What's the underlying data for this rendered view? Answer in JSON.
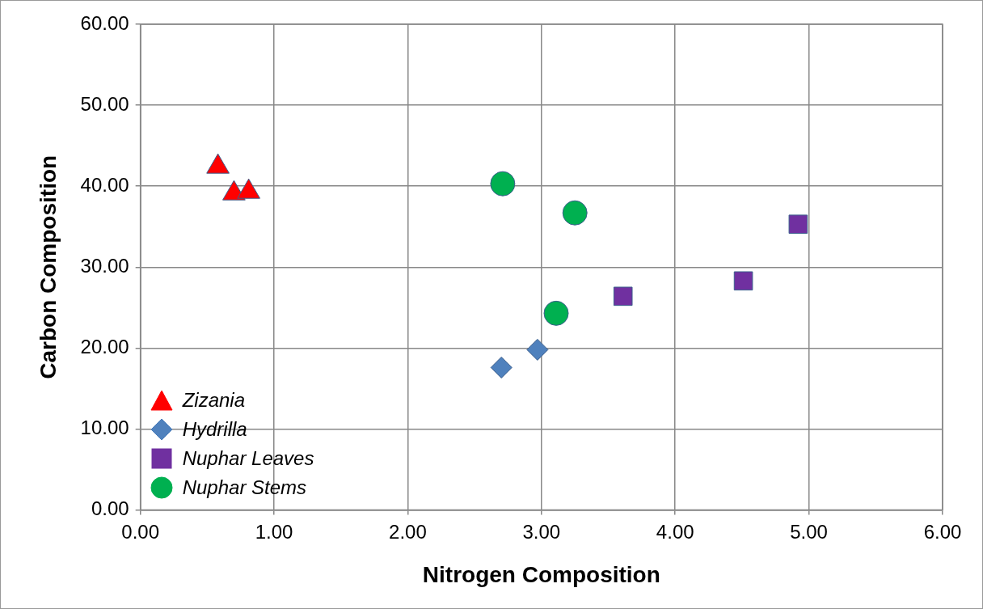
{
  "chart_data": {
    "type": "scatter",
    "xlabel": "Nitrogen Composition",
    "ylabel": "Carbon Composition",
    "xlim": [
      0,
      6
    ],
    "ylim": [
      0,
      60
    ],
    "xticks": [
      {
        "value": 0,
        "label": "0.00"
      },
      {
        "value": 1,
        "label": "1.00"
      },
      {
        "value": 2,
        "label": "2.00"
      },
      {
        "value": 3,
        "label": "3.00"
      },
      {
        "value": 4,
        "label": "4.00"
      },
      {
        "value": 5,
        "label": "5.00"
      },
      {
        "value": 6,
        "label": "6.00"
      }
    ],
    "yticks": [
      {
        "value": 0,
        "label": "0.00"
      },
      {
        "value": 10,
        "label": "10.00"
      },
      {
        "value": 20,
        "label": "20.00"
      },
      {
        "value": 30,
        "label": "30.00"
      },
      {
        "value": 40,
        "label": "40.00"
      },
      {
        "value": 50,
        "label": "50.00"
      },
      {
        "value": 60,
        "label": "60.00"
      }
    ],
    "grid": true,
    "legend": "bottom left",
    "series": [
      {
        "name": "Zizania",
        "color": "#ff0000",
        "marker": "triangle",
        "x": [
          0.58,
          0.7,
          0.81
        ],
        "values": [
          42.4,
          39.1,
          39.3
        ]
      },
      {
        "name": "Hydrilla",
        "color": "#4f81bd",
        "marker": "diamond",
        "x": [
          2.7,
          2.97
        ],
        "values": [
          17.6,
          19.8
        ]
      },
      {
        "name": "Nuphar Leaves",
        "color": "#7030a0",
        "marker": "square",
        "x": [
          3.61,
          4.51,
          4.92
        ],
        "values": [
          26.4,
          28.3,
          35.3
        ]
      },
      {
        "name": "Nuphar Stems",
        "color": "#00b050",
        "marker": "circle",
        "x": [
          2.71,
          3.25,
          3.11
        ],
        "values": [
          40.3,
          36.7,
          24.3
        ]
      }
    ]
  }
}
